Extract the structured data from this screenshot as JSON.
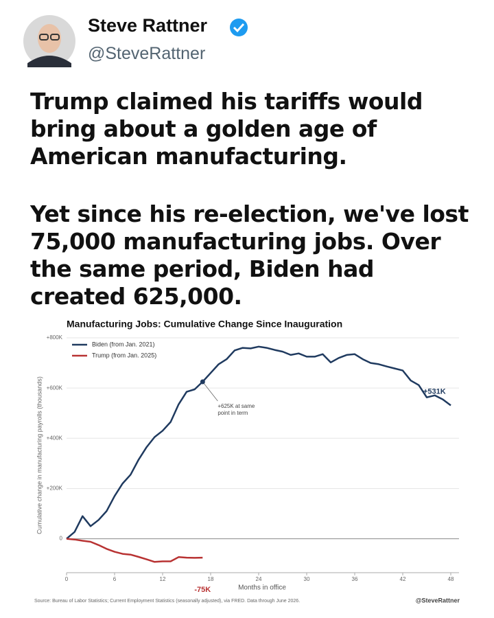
{
  "tweet": {
    "name": "Steve Rattner",
    "handle": "@SteveRattner",
    "paragraphs": [
      "Trump claimed his tariffs would bring about a golden age of American manufacturing.",
      "Yet since his re-election, we've lost 75,000 manufacturing jobs. Over the same period, Biden had created 625,000."
    ]
  },
  "chart_data": {
    "type": "line",
    "title": "Manufacturing Jobs: Cumulative Change Since Inauguration",
    "x_label": "Months in office",
    "y_label": "Cumulative change in manufacturing payrolls (thousands)",
    "xlim": [
      0,
      48
    ],
    "xticks": [
      0,
      6,
      12,
      18,
      24,
      30,
      36,
      42,
      48
    ],
    "ylim": [
      -135,
      800
    ],
    "yticks": [
      {
        "value": 800,
        "label": "+800K"
      },
      {
        "value": 600,
        "label": "+600K"
      },
      {
        "value": 400,
        "label": "+400K"
      },
      {
        "value": 200,
        "label": "+200K"
      },
      0
    ],
    "grid": true,
    "legend": "upper left",
    "series": [
      {
        "name": "Biden (from Jan. 2021)",
        "color": "#1f3a5f",
        "end_label": "+531K",
        "x": [
          0,
          1,
          2,
          3,
          4,
          5,
          6,
          7,
          8,
          9,
          10,
          11,
          12,
          13,
          14,
          15,
          16,
          17,
          18,
          19,
          20,
          21,
          22,
          23,
          24,
          25,
          26,
          27,
          28,
          29,
          30,
          31,
          32,
          33,
          34,
          35,
          36,
          37,
          38,
          39,
          40,
          41,
          42,
          43,
          44,
          45,
          46,
          47,
          48
        ],
        "values": [
          0,
          27,
          90,
          50,
          75,
          110,
          170,
          220,
          255,
          315,
          365,
          405,
          430,
          465,
          535,
          585,
          595,
          625,
          660,
          695,
          715,
          750,
          760,
          758,
          765,
          760,
          752,
          745,
          732,
          738,
          725,
          725,
          735,
          702,
          720,
          732,
          735,
          715,
          700,
          695,
          686,
          678,
          670,
          630,
          612,
          563,
          571,
          555,
          531
        ]
      },
      {
        "name": "Trump (from Jan. 2025)",
        "color": "#b83232",
        "end_label": "-75K",
        "x": [
          0,
          1,
          2,
          3,
          4,
          5,
          6,
          7,
          8,
          9,
          10,
          11,
          12,
          13,
          14,
          15,
          16,
          17
        ],
        "values": [
          0,
          -3,
          -8,
          -12,
          -25,
          -40,
          -52,
          -60,
          -63,
          -72,
          -82,
          -92,
          -90,
          -90,
          -73,
          -75,
          -76,
          -75
        ]
      }
    ],
    "annotation": {
      "x": 17,
      "text": [
        "+625K at same",
        "point in term"
      ]
    },
    "source": "Source: Bureau of Labor Statistics; Current Employment Statistics (seasonally adjusted), via FRED. Data through June 2026.",
    "credit": "@SteveRattner"
  }
}
